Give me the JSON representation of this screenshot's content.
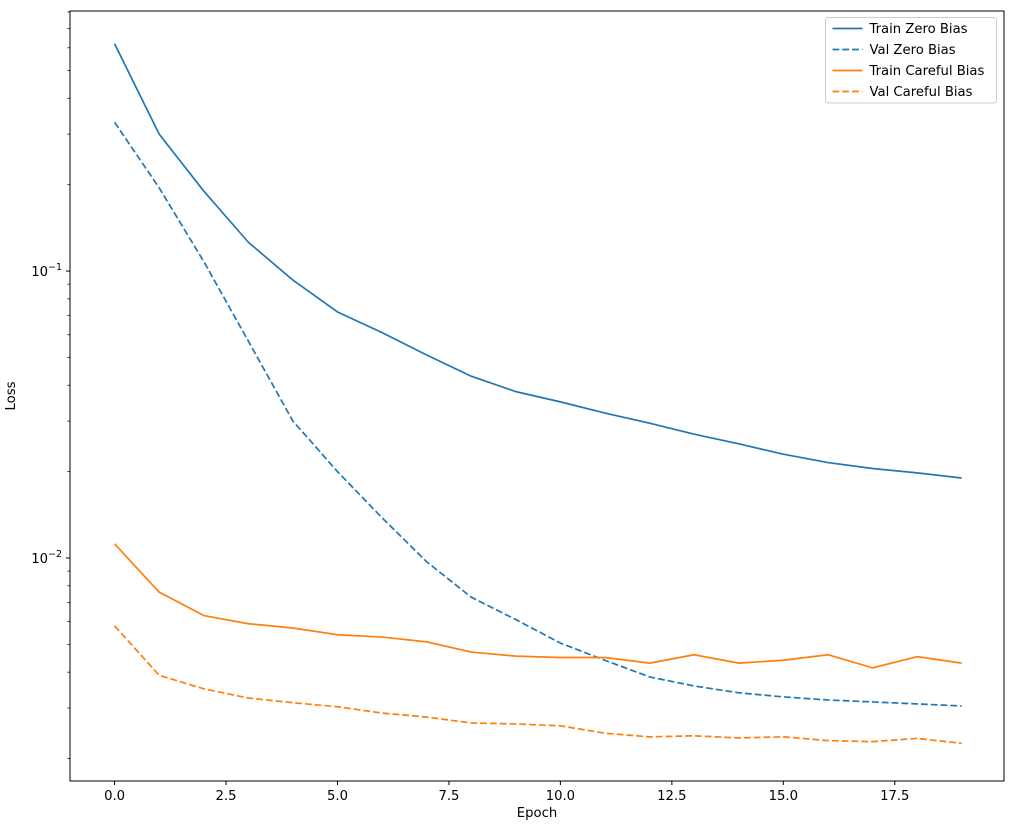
{
  "chart_data": {
    "type": "line",
    "title": "",
    "xlabel": "Epoch",
    "ylabel": "Loss",
    "xscale": "linear",
    "yscale": "log",
    "grid": false,
    "background": "#ffffff",
    "axis_color": "#000000",
    "xlim": [
      -1.0,
      19.95
    ],
    "ylim": [
      0.00167,
      0.806
    ],
    "x": [
      0,
      1,
      2,
      3,
      4,
      5,
      6,
      7,
      8,
      9,
      10,
      11,
      12,
      13,
      14,
      15,
      16,
      17,
      18,
      19
    ],
    "series": [
      {
        "name": "Train Zero Bias",
        "color": "#1f77b4",
        "style": "solid",
        "values": [
          0.62,
          0.3,
          0.19,
          0.126,
          0.093,
          0.072,
          0.061,
          0.051,
          0.043,
          0.038,
          0.035,
          0.032,
          0.0295,
          0.027,
          0.025,
          0.023,
          0.0215,
          0.0205,
          0.0198,
          0.019
        ]
      },
      {
        "name": "Val Zero Bias",
        "color": "#1f77b4",
        "style": "dashed",
        "values": [
          0.33,
          0.195,
          0.108,
          0.057,
          0.03,
          0.02,
          0.0138,
          0.0097,
          0.0073,
          0.0061,
          0.00505,
          0.0044,
          0.00385,
          0.00358,
          0.00339,
          0.00328,
          0.0032,
          0.00315,
          0.0031,
          0.00305
        ]
      },
      {
        "name": "Train Careful Bias",
        "color": "#ff7f0e",
        "style": "solid",
        "values": [
          0.0112,
          0.0076,
          0.0063,
          0.0059,
          0.0057,
          0.0054,
          0.0053,
          0.0051,
          0.0047,
          0.00455,
          0.0045,
          0.0045,
          0.0043,
          0.0046,
          0.0043,
          0.0044,
          0.0046,
          0.00414,
          0.00453,
          0.0043
        ]
      },
      {
        "name": "Val Careful Bias",
        "color": "#ff7f0e",
        "style": "dashed",
        "values": [
          0.0058,
          0.0039,
          0.0035,
          0.00325,
          0.00313,
          0.00303,
          0.00288,
          0.00279,
          0.00266,
          0.00264,
          0.0026,
          0.00245,
          0.00238,
          0.0024,
          0.00236,
          0.00238,
          0.00231,
          0.00229,
          0.00235,
          0.00226
        ]
      }
    ],
    "xticks": {
      "values": [
        0,
        2.5,
        5,
        7.5,
        10,
        12.5,
        15,
        17.5
      ],
      "labels": [
        "0.0",
        "2.5",
        "5.0",
        "7.5",
        "10.0",
        "12.5",
        "15.0",
        "17.5"
      ]
    },
    "yticks": [
      {
        "value": 0.1,
        "base": "10",
        "exp": "−1"
      },
      {
        "value": 0.01,
        "base": "10",
        "exp": "−2"
      }
    ],
    "legend": {
      "position": "upper right",
      "entries": [
        "Train Zero Bias",
        "Val Zero Bias",
        "Train Careful Bias",
        "Val Careful Bias"
      ],
      "border_color": "#cccccc"
    }
  }
}
